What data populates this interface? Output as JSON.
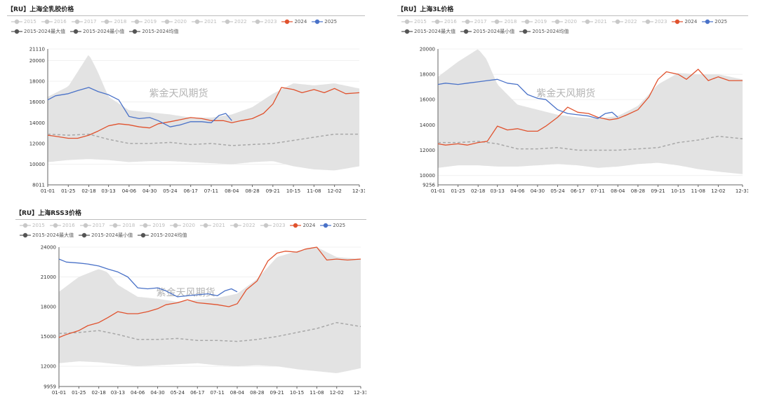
{
  "colors": {
    "y2024": "#e0522e",
    "y2025": "#4a72c8",
    "band": "#e3e3e3",
    "mean": "#a8a8a8",
    "faded": "#c8c8c8",
    "stat": "#555555",
    "grid": "#f0f0f0",
    "axis": "#666666"
  },
  "legend": {
    "years": [
      "2015",
      "2016",
      "2017",
      "2018",
      "2019",
      "2020",
      "2021",
      "2022",
      "2023"
    ],
    "y2024": "2024",
    "y2025": "2025",
    "max": "2015-2024最大值",
    "min": "2015-2024最小值",
    "mean": "2015-2024均值"
  },
  "chart_data": [
    {
      "type": "line",
      "title": "【RU】上海全乳胶价格",
      "watermark": "紫金天风期货",
      "ylim": [
        8011,
        21110
      ],
      "yticks": [
        8011,
        10000,
        12000,
        14000,
        16000,
        18000,
        20000,
        21110
      ],
      "x_ticks": [
        "01-01",
        "01-25",
        "02-18",
        "03-13",
        "04-06",
        "04-30",
        "05-24",
        "06-17",
        "07-11",
        "08-04",
        "08-28",
        "09-21",
        "10-15",
        "11-08",
        "12-02",
        "12-31"
      ],
      "series": [
        {
          "name": "2024",
          "x": [
            "01-01",
            "01-10",
            "01-25",
            "02-05",
            "02-18",
            "03-01",
            "03-13",
            "03-25",
            "04-06",
            "04-18",
            "04-30",
            "05-10",
            "05-24",
            "06-05",
            "06-17",
            "06-30",
            "07-11",
            "07-25",
            "08-04",
            "08-15",
            "08-28",
            "09-10",
            "09-21",
            "10-01",
            "10-15",
            "10-25",
            "11-08",
            "11-20",
            "12-02",
            "12-15",
            "12-31"
          ],
          "values": [
            12800,
            12700,
            12500,
            12500,
            12800,
            13200,
            13700,
            13900,
            13800,
            13600,
            13500,
            13900,
            14100,
            14300,
            14500,
            14400,
            14200,
            14200,
            14000,
            14200,
            14400,
            14900,
            15800,
            17400,
            17200,
            16900,
            17200,
            16900,
            17300,
            16800,
            16900
          ]
        },
        {
          "name": "2025",
          "x": [
            "01-01",
            "01-10",
            "01-25",
            "02-05",
            "02-18",
            "03-01",
            "03-13",
            "03-25",
            "04-06",
            "04-18",
            "04-30",
            "05-10",
            "05-24",
            "06-05",
            "06-17",
            "06-30",
            "07-11",
            "07-20",
            "07-28",
            "08-04"
          ],
          "values": [
            16200,
            16600,
            16800,
            17100,
            17400,
            17000,
            16700,
            16200,
            14600,
            14400,
            14500,
            14200,
            13600,
            13800,
            14100,
            14100,
            14000,
            14700,
            14900,
            14200
          ]
        },
        {
          "name": "2015-2024均值",
          "x": [
            "01-01",
            "01-25",
            "02-18",
            "03-13",
            "04-06",
            "04-30",
            "05-24",
            "06-17",
            "07-11",
            "08-04",
            "08-28",
            "09-21",
            "10-15",
            "11-08",
            "12-02",
            "12-31"
          ],
          "values": [
            12900,
            12800,
            12900,
            12400,
            12000,
            12000,
            12100,
            11900,
            12000,
            11800,
            11900,
            12000,
            12300,
            12600,
            12900,
            12900
          ]
        },
        {
          "name": "2015-2024最大值",
          "x": [
            "01-01",
            "01-25",
            "02-18",
            "02-28",
            "03-13",
            "04-06",
            "04-30",
            "05-24",
            "06-17",
            "07-11",
            "08-04",
            "08-28",
            "09-21",
            "10-15",
            "11-08",
            "12-02",
            "12-31"
          ],
          "values": [
            16500,
            17500,
            20600,
            19000,
            16500,
            15200,
            15000,
            14800,
            14500,
            14500,
            14800,
            15500,
            16800,
            17800,
            17600,
            17800,
            17300
          ]
        },
        {
          "name": "2015-2024最小值",
          "x": [
            "01-01",
            "01-25",
            "02-18",
            "03-13",
            "04-06",
            "04-30",
            "05-24",
            "06-17",
            "07-11",
            "08-04",
            "08-28",
            "09-21",
            "10-15",
            "11-08",
            "12-02",
            "12-31"
          ],
          "values": [
            10200,
            10400,
            10500,
            10400,
            10200,
            10300,
            10300,
            10200,
            10100,
            10000,
            10200,
            10300,
            9800,
            9500,
            9400,
            9800
          ]
        }
      ]
    },
    {
      "type": "line",
      "title": "【RU】上海3L价格",
      "watermark": "紫金天风期货",
      "ylim": [
        9256,
        20000
      ],
      "yticks": [
        9256,
        10000,
        12000,
        14000,
        16000,
        18000,
        20000
      ],
      "x_ticks": [
        "01-01",
        "01-25",
        "02-18",
        "03-13",
        "04-06",
        "04-30",
        "05-24",
        "06-17",
        "07-11",
        "08-04",
        "08-28",
        "09-21",
        "10-15",
        "11-08",
        "12-02",
        "12-31"
      ],
      "series": [
        {
          "name": "2024",
          "x": [
            "01-01",
            "01-10",
            "01-25",
            "02-05",
            "02-18",
            "03-01",
            "03-13",
            "03-25",
            "04-06",
            "04-18",
            "04-30",
            "05-10",
            "05-24",
            "06-05",
            "06-17",
            "06-30",
            "07-11",
            "07-25",
            "08-04",
            "08-15",
            "08-28",
            "09-10",
            "09-21",
            "10-01",
            "10-15",
            "10-25",
            "11-08",
            "11-20",
            "12-02",
            "12-15",
            "12-31"
          ],
          "values": [
            12500,
            12400,
            12500,
            12400,
            12600,
            12700,
            13900,
            13600,
            13700,
            13500,
            13500,
            13900,
            14600,
            15400,
            15000,
            14900,
            14600,
            14400,
            14500,
            14800,
            15200,
            16200,
            17600,
            18200,
            18000,
            17600,
            18400,
            17500,
            17800,
            17500,
            17500
          ]
        },
        {
          "name": "2025",
          "x": [
            "01-01",
            "01-10",
            "01-25",
            "02-05",
            "02-18",
            "03-01",
            "03-13",
            "03-25",
            "04-06",
            "04-18",
            "04-30",
            "05-10",
            "05-24",
            "06-05",
            "06-17",
            "06-30",
            "07-11",
            "07-20",
            "07-28",
            "08-04"
          ],
          "values": [
            17200,
            17300,
            17200,
            17300,
            17400,
            17500,
            17600,
            17300,
            17200,
            16400,
            16100,
            16000,
            15200,
            14900,
            14800,
            14700,
            14500,
            14900,
            15000,
            14600
          ]
        },
        {
          "name": "2015-2024均值",
          "x": [
            "01-01",
            "01-25",
            "02-18",
            "03-13",
            "04-06",
            "04-30",
            "05-24",
            "06-17",
            "07-11",
            "08-04",
            "08-28",
            "09-21",
            "10-15",
            "11-08",
            "12-02",
            "12-31"
          ],
          "values": [
            12600,
            12600,
            12700,
            12500,
            12100,
            12100,
            12200,
            12000,
            12000,
            12000,
            12100,
            12200,
            12600,
            12800,
            13100,
            12900
          ]
        },
        {
          "name": "2015-2024最大值",
          "x": [
            "01-01",
            "01-25",
            "02-18",
            "02-28",
            "03-13",
            "04-06",
            "04-30",
            "05-24",
            "06-17",
            "07-11",
            "08-04",
            "08-28",
            "09-21",
            "10-15",
            "11-08",
            "12-02",
            "12-31"
          ],
          "values": [
            17800,
            19000,
            20000,
            19200,
            17200,
            15600,
            15200,
            14800,
            14600,
            14500,
            14700,
            15500,
            17200,
            18100,
            18000,
            18000,
            17600
          ]
        },
        {
          "name": "2015-2024最小值",
          "x": [
            "01-01",
            "01-25",
            "02-18",
            "03-13",
            "04-06",
            "04-30",
            "05-24",
            "06-17",
            "07-11",
            "08-04",
            "08-28",
            "09-21",
            "10-15",
            "11-08",
            "12-02",
            "12-31"
          ],
          "values": [
            10600,
            10800,
            10800,
            10700,
            10700,
            10800,
            10900,
            10800,
            10600,
            10700,
            10900,
            11000,
            10800,
            10500,
            10300,
            10100
          ]
        }
      ]
    },
    {
      "type": "line",
      "title": "【RU】上海RSS3价格",
      "watermark": "紫金天风期货",
      "ylim": [
        9959,
        24000
      ],
      "yticks": [
        9959,
        12000,
        15000,
        18000,
        21000,
        24000
      ],
      "x_ticks": [
        "01-01",
        "01-25",
        "02-18",
        "03-13",
        "04-06",
        "04-30",
        "05-24",
        "06-17",
        "07-11",
        "08-04",
        "08-28",
        "09-21",
        "10-15",
        "11-08",
        "12-02",
        "12-31"
      ],
      "series": [
        {
          "name": "2024",
          "x": [
            "01-01",
            "01-10",
            "01-25",
            "02-05",
            "02-18",
            "03-01",
            "03-13",
            "03-25",
            "04-06",
            "04-18",
            "04-30",
            "05-10",
            "05-24",
            "06-05",
            "06-17",
            "06-30",
            "07-11",
            "07-25",
            "08-04",
            "08-15",
            "08-28",
            "09-10",
            "09-21",
            "10-01",
            "10-15",
            "10-25",
            "11-08",
            "11-20",
            "12-02",
            "12-15",
            "12-31"
          ],
          "values": [
            14900,
            15200,
            15600,
            16100,
            16400,
            16900,
            17500,
            17300,
            17300,
            17500,
            17800,
            18200,
            18400,
            18700,
            18400,
            18300,
            18200,
            18000,
            18300,
            19700,
            20600,
            22600,
            23400,
            23600,
            23500,
            23800,
            24000,
            22700,
            22800,
            22700,
            22800
          ]
        },
        {
          "name": "2025",
          "x": [
            "01-01",
            "01-10",
            "01-25",
            "02-05",
            "02-18",
            "03-01",
            "03-13",
            "03-25",
            "04-06",
            "04-18",
            "04-30",
            "05-10",
            "05-24",
            "06-05",
            "06-17",
            "06-30",
            "07-11",
            "07-20",
            "07-28",
            "08-04"
          ],
          "values": [
            22800,
            22500,
            22400,
            22300,
            22100,
            21800,
            21500,
            21000,
            19900,
            19800,
            19900,
            19600,
            19000,
            19100,
            19200,
            19300,
            19100,
            19600,
            19800,
            19500
          ]
        },
        {
          "name": "2015-2024均值",
          "x": [
            "01-01",
            "01-25",
            "02-18",
            "03-13",
            "04-06",
            "04-30",
            "05-24",
            "06-17",
            "07-11",
            "08-04",
            "08-28",
            "09-21",
            "10-15",
            "11-08",
            "12-02",
            "12-31"
          ],
          "values": [
            15300,
            15400,
            15600,
            15200,
            14700,
            14700,
            14800,
            14600,
            14600,
            14500,
            14700,
            15000,
            15400,
            15800,
            16400,
            16000
          ]
        },
        {
          "name": "2015-2024最大值",
          "x": [
            "01-01",
            "01-25",
            "02-18",
            "02-28",
            "03-13",
            "04-06",
            "04-30",
            "05-24",
            "06-17",
            "07-11",
            "08-04",
            "08-28",
            "09-21",
            "10-15",
            "11-08",
            "12-02",
            "12-31"
          ],
          "values": [
            19500,
            21000,
            21800,
            21500,
            20200,
            19000,
            18800,
            18500,
            18700,
            18900,
            19300,
            20800,
            23000,
            23600,
            24000,
            23000,
            22800
          ]
        },
        {
          "name": "2015-2024最小值",
          "x": [
            "01-01",
            "01-25",
            "02-18",
            "03-13",
            "04-06",
            "04-30",
            "05-24",
            "06-17",
            "07-11",
            "08-04",
            "08-28",
            "09-21",
            "10-15",
            "11-08",
            "12-02",
            "12-31"
          ],
          "values": [
            12300,
            12500,
            12400,
            12200,
            12000,
            12100,
            12200,
            12300,
            12100,
            12000,
            12100,
            12000,
            11700,
            11500,
            11300,
            11800
          ]
        }
      ]
    }
  ]
}
